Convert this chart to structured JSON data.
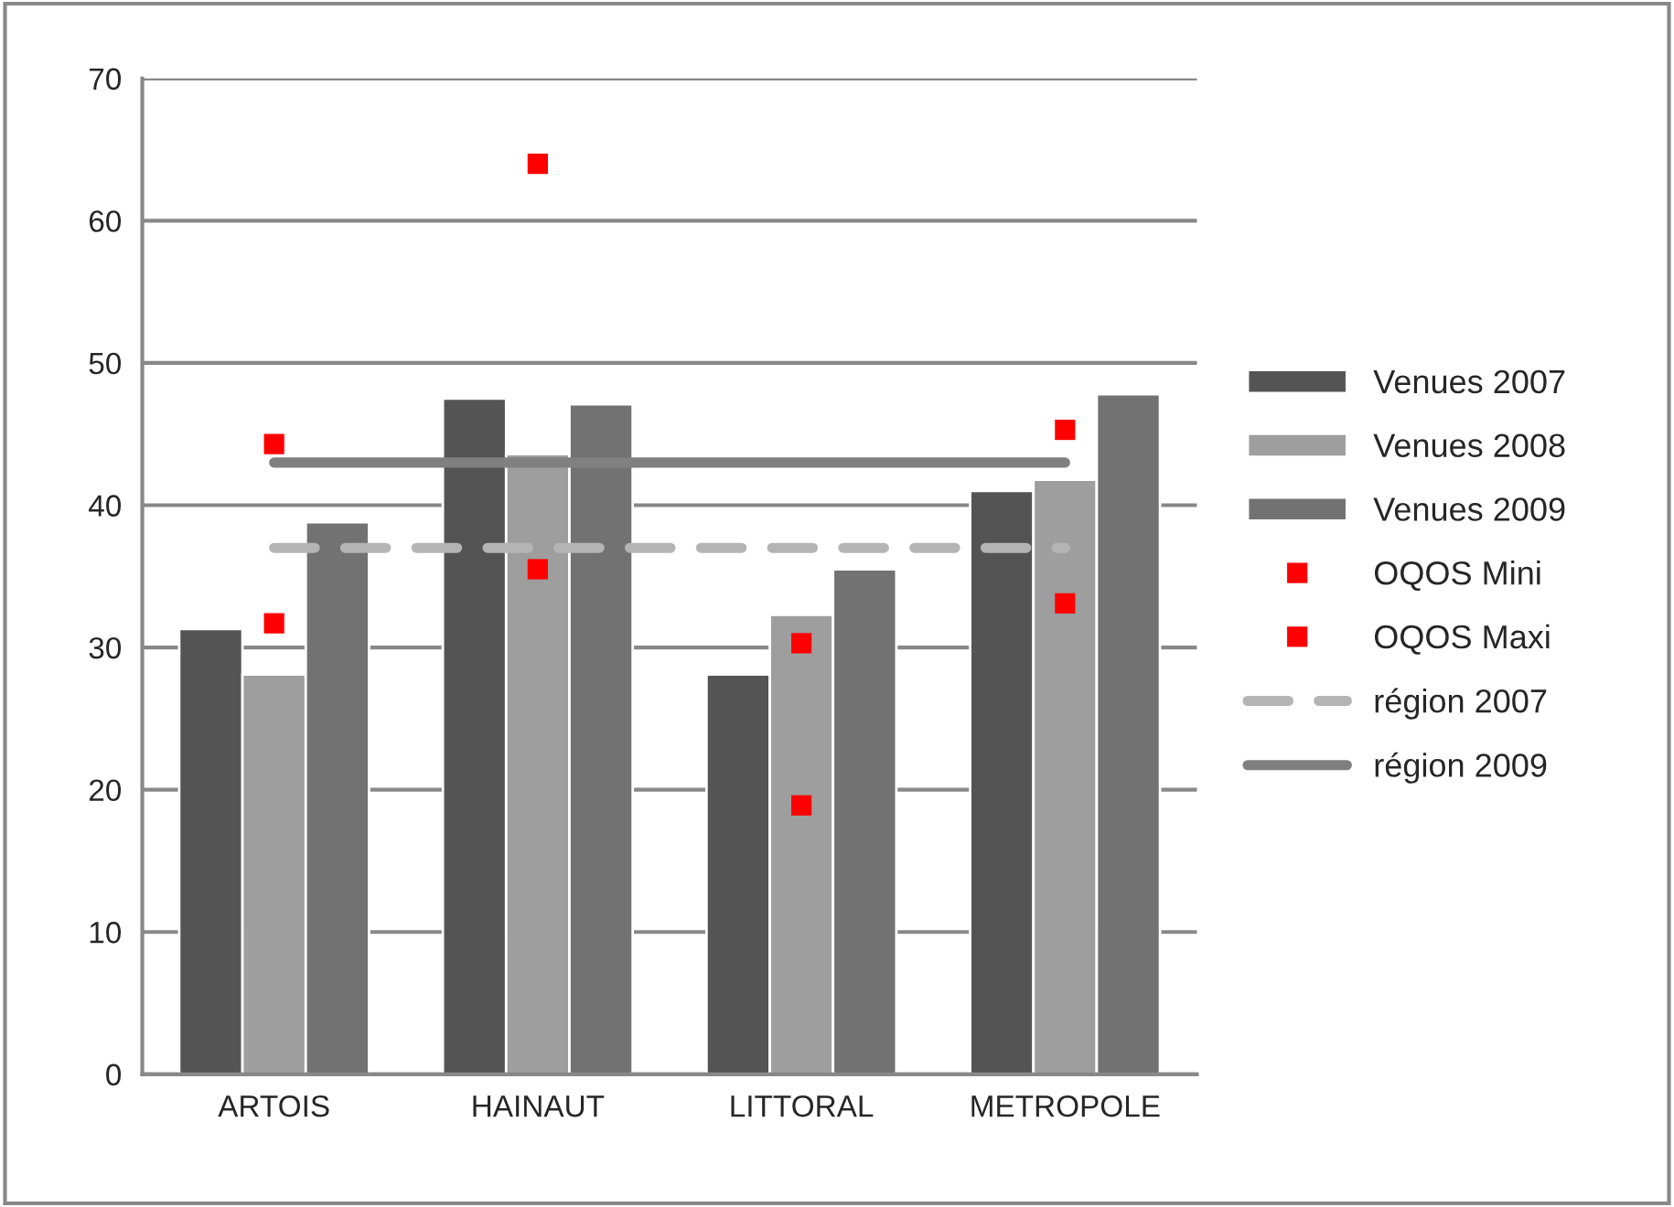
{
  "chart_data": {
    "type": "bar",
    "categories": [
      "ARTOIS",
      "HAINAUT",
      "LITTORAL",
      "METROPOLE"
    ],
    "series": [
      {
        "name": "Venues 2007",
        "color": "#545454",
        "values": [
          31.3,
          47.5,
          28.1,
          41.0
        ]
      },
      {
        "name": "Venues 2008",
        "color": "#9e9e9e",
        "values": [
          28.1,
          43.6,
          32.3,
          41.8
        ]
      },
      {
        "name": "Venues 2009",
        "color": "#727272",
        "values": [
          38.8,
          47.1,
          35.5,
          47.8
        ]
      },
      {
        "name": "OQOS Mini",
        "type": "scatter",
        "color": "#ff0000",
        "marker": "square",
        "values": [
          31.7,
          35.5,
          18.9,
          33.1
        ]
      },
      {
        "name": "OQOS Maxi",
        "type": "scatter",
        "color": "#ff0000",
        "marker": "square",
        "values": [
          44.3,
          64.0,
          30.3,
          45.3
        ]
      },
      {
        "name": "région 2007",
        "type": "line",
        "color": "#b4b4b4",
        "line_style": "dashed",
        "values": [
          37,
          37,
          37,
          37
        ]
      },
      {
        "name": "région 2009",
        "type": "line",
        "color": "#808080",
        "line_style": "solid",
        "values": [
          43,
          43,
          43,
          43
        ]
      }
    ],
    "ylim": [
      0,
      70
    ],
    "yticks": [
      0,
      10,
      20,
      30,
      40,
      50,
      60,
      70
    ],
    "grid": "y",
    "legend": "right"
  }
}
